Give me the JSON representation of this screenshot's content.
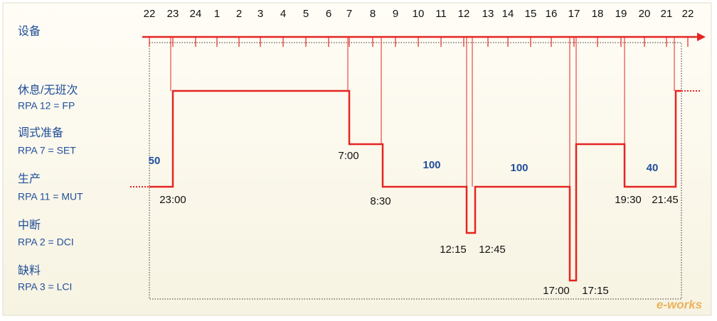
{
  "header": {
    "title": "设备"
  },
  "hours": [
    "22",
    "23",
    "24",
    "1",
    "2",
    "3",
    "4",
    "5",
    "6",
    "7",
    "8",
    "9",
    "10",
    "11",
    "12",
    "13",
    "14",
    "15",
    "16",
    "17",
    "18",
    "19",
    "20",
    "21",
    "22"
  ],
  "states": [
    {
      "name": "休息/无班次",
      "code": "RPA 12 = FP"
    },
    {
      "name": "调式准备",
      "code": "RPA 7 = SET"
    },
    {
      "name": "生产",
      "code": "RPA 11 = MUT"
    },
    {
      "name": "中断",
      "code": "RPA  2 = DCI"
    },
    {
      "name": "缺料",
      "code": "RPA 3 = LCI"
    }
  ],
  "times": [
    "23:00",
    "7:00",
    "8:30",
    "12:15",
    "12:45",
    "17:00",
    "17:15",
    "19:30",
    "21:45"
  ],
  "quantities": [
    "50",
    "100",
    "100",
    "40"
  ],
  "watermark": "e-works"
}
